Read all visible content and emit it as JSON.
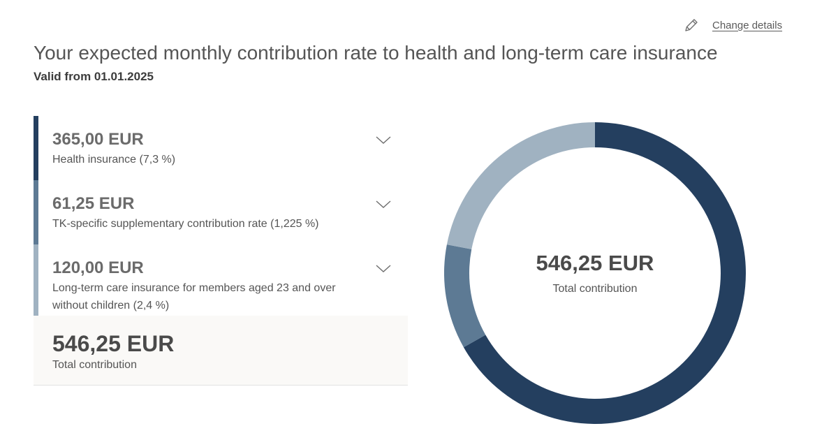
{
  "header": {
    "change_details_label": "Change details",
    "title": "Your expected monthly contribution rate to health and long-term care insurance",
    "valid_from": "Valid from 01.01.2025"
  },
  "items": [
    {
      "amount": "365,00 EUR",
      "label": "Health insurance (7,3 %)",
      "color": "#243f5f"
    },
    {
      "amount": "61,25 EUR",
      "label": "TK-specific supplementary contribution rate (1,225 %)",
      "color": "#5d7a94"
    },
    {
      "amount": "120,00 EUR",
      "label": "Long-term care insurance for members aged 23 and over without children (2,4 %)",
      "color": "#a0b2c1"
    }
  ],
  "total": {
    "amount": "546,25 EUR",
    "label": "Total contribution"
  },
  "chart_data": {
    "type": "pie",
    "variant": "donut",
    "categories": [
      "Health insurance (7,3 %)",
      "TK-specific supplementary contribution rate (1,225 %)",
      "Long-term care insurance for members aged 23 and over without children (2,4 %)"
    ],
    "values": [
      365.0,
      61.25,
      120.0
    ],
    "colors": [
      "#243f5f",
      "#5d7a94",
      "#a0b2c1"
    ],
    "center_value": "546,25 EUR",
    "center_label": "Total contribution"
  }
}
